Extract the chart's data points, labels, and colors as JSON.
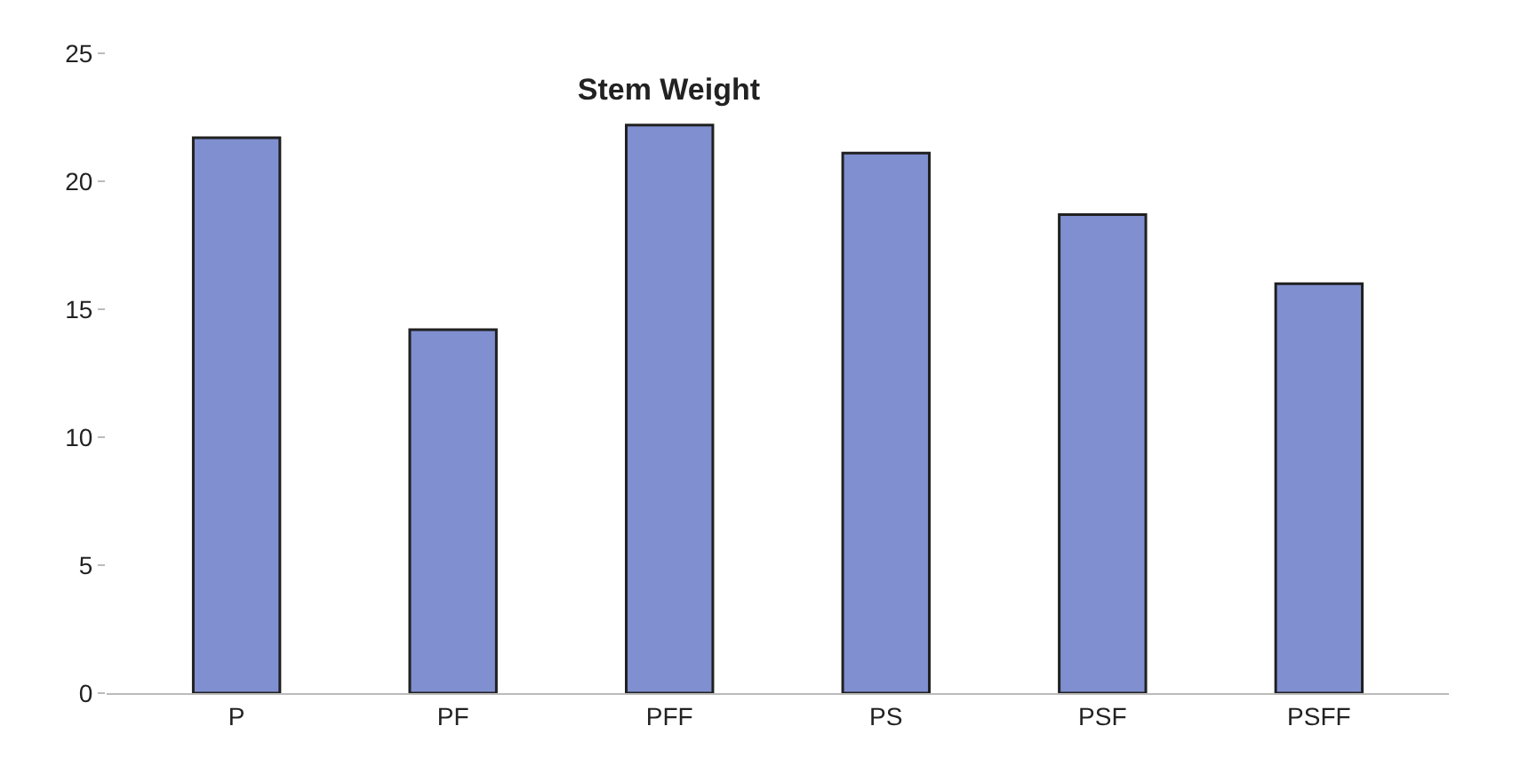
{
  "chart_data": {
    "type": "bar",
    "title": "Stem Weight",
    "categories": [
      "P",
      "PF",
      "PFF",
      "PS",
      "PSF",
      "PSFF"
    ],
    "values": [
      21.7,
      14.2,
      22.2,
      21.1,
      18.7,
      16.0
    ],
    "color": "#7f8fd0",
    "ylim": [
      0,
      25
    ],
    "yticks": [
      0,
      5,
      10,
      15,
      20,
      25
    ]
  }
}
